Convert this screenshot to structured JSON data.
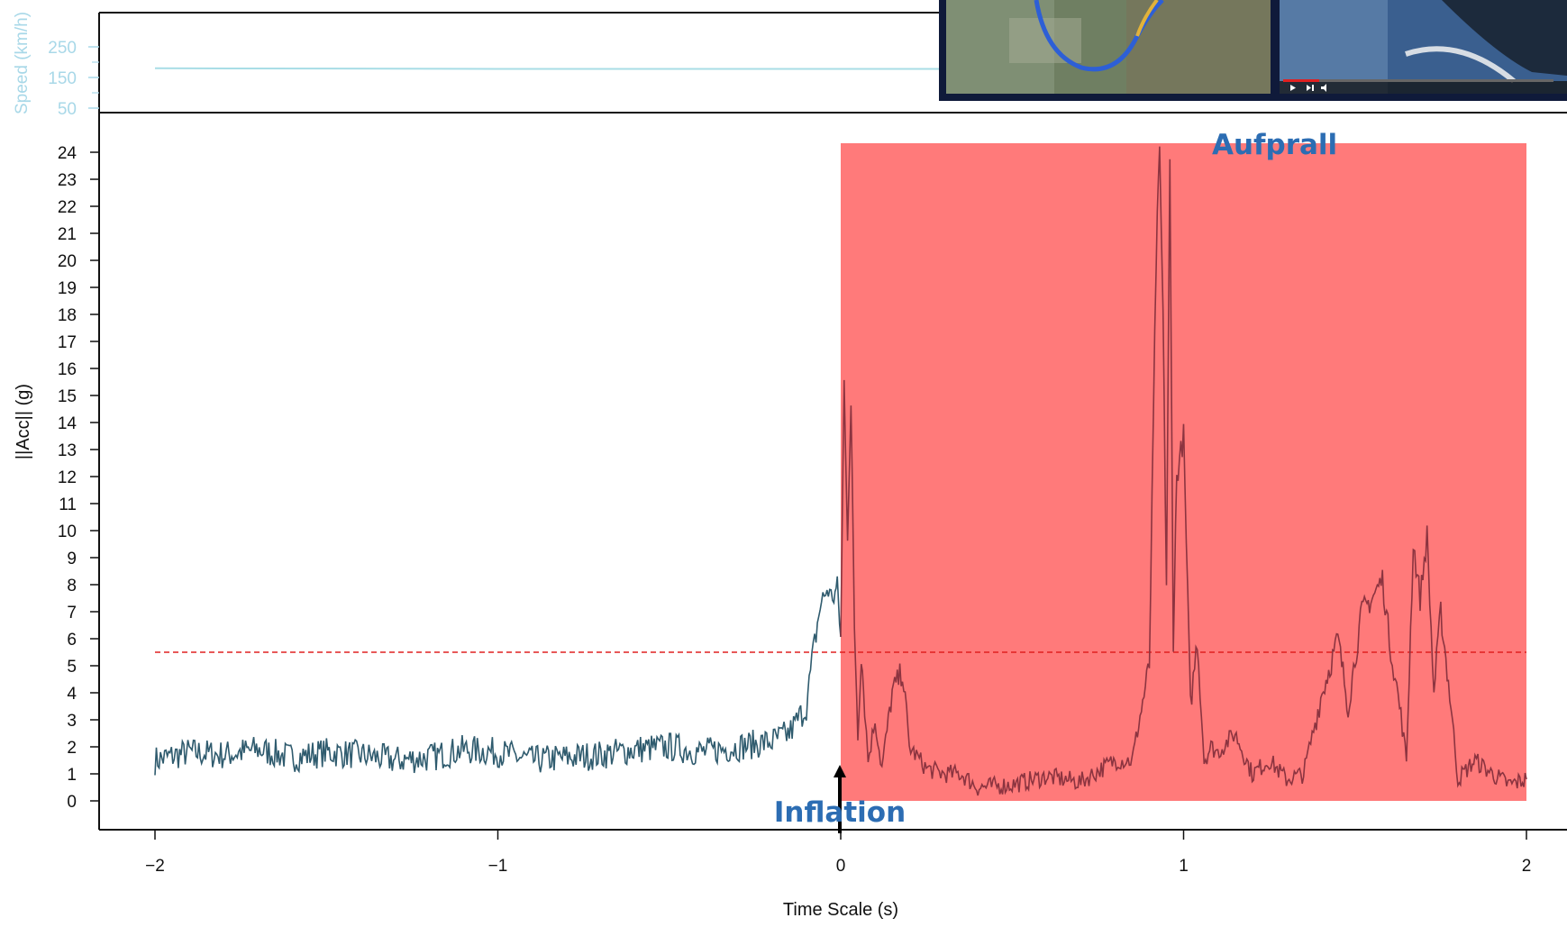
{
  "colors": {
    "acc_line": "#2f5b6e",
    "acc_line_in_region": "#8c3440",
    "speed_line": "#a8dde6",
    "threshold": "#e02020",
    "impact_region": "#ff7a7a",
    "annotation": "#2c6db3",
    "frame": "#111111",
    "speed_text": "#a8d8e8"
  },
  "chart_data": [
    {
      "type": "line",
      "panel": "acceleration",
      "xlabel": "Time Scale (s)",
      "ylabel": "||Acc|| (g)",
      "xlim": [
        -2,
        2
      ],
      "ylim": [
        0,
        24
      ],
      "x_ticks": [
        "−2",
        "−1",
        "0",
        "1",
        "2"
      ],
      "y_ticks": [
        "0",
        "1",
        "2",
        "3",
        "4",
        "5",
        "6",
        "7",
        "8",
        "9",
        "10",
        "11",
        "12",
        "13",
        "14",
        "15",
        "16",
        "17",
        "18",
        "19",
        "20",
        "21",
        "22",
        "23",
        "24"
      ],
      "threshold": 5.5,
      "impact_region": {
        "x_start": 0,
        "x_end": 2,
        "y_start": 0,
        "y_end": 25
      },
      "annotations": [
        {
          "label": "Aufprall",
          "x": 1.2,
          "y": 24.2
        },
        {
          "label": "Inflation",
          "x": 0,
          "arrow_from": -1.2,
          "arrow_to": 1.0
        }
      ],
      "series": [
        {
          "x": [
            -2.0,
            -1.9,
            -1.8,
            -1.7,
            -1.6,
            -1.5,
            -1.4,
            -1.3,
            -1.2,
            -1.1,
            -1.0,
            -0.9,
            -0.8,
            -0.7,
            -0.6,
            -0.5,
            -0.4,
            -0.3,
            -0.2,
            -0.15,
            -0.1,
            -0.08,
            -0.06,
            -0.04,
            -0.02,
            -0.01,
            0.0,
            0.01,
            0.02,
            0.03,
            0.04,
            0.05,
            0.06,
            0.07,
            0.08,
            0.1,
            0.12,
            0.15,
            0.18,
            0.2,
            0.25,
            0.3,
            0.35,
            0.4,
            0.5,
            0.6,
            0.7,
            0.8,
            0.85,
            0.9,
            0.92,
            0.93,
            0.94,
            0.95,
            0.96,
            0.97,
            0.98,
            1.0,
            1.02,
            1.04,
            1.06,
            1.08,
            1.1,
            1.15,
            1.2,
            1.25,
            1.3,
            1.35,
            1.4,
            1.45,
            1.48,
            1.52,
            1.55,
            1.58,
            1.6,
            1.63,
            1.65,
            1.67,
            1.69,
            1.71,
            1.73,
            1.75,
            1.78,
            1.8,
            1.85,
            1.9,
            1.95,
            2.0
          ],
          "y": [
            1.5,
            1.8,
            1.7,
            1.9,
            1.6,
            1.8,
            1.7,
            1.5,
            1.6,
            1.9,
            1.8,
            1.5,
            1.6,
            1.7,
            1.9,
            2.0,
            1.8,
            2.0,
            2.2,
            2.5,
            3.5,
            5.5,
            7.2,
            7.8,
            7.5,
            8.0,
            6.0,
            15.5,
            10.0,
            14.5,
            6.5,
            2.5,
            5.5,
            3.5,
            1.5,
            3.0,
            1.2,
            4.0,
            4.8,
            2.0,
            1.2,
            1.0,
            1.0,
            0.5,
            0.6,
            0.9,
            0.7,
            1.5,
            1.5,
            5.0,
            20.0,
            24.0,
            18.0,
            8.0,
            23.5,
            6.0,
            12.0,
            13.5,
            3.5,
            6.0,
            1.5,
            2.0,
            1.8,
            2.5,
            1.0,
            1.5,
            0.8,
            1.0,
            3.8,
            6.0,
            3.5,
            7.0,
            7.5,
            8.2,
            6.0,
            3.5,
            1.5,
            9.5,
            7.5,
            9.8,
            4.0,
            7.0,
            3.5,
            0.8,
            1.5,
            1.0,
            0.6,
            0.8
          ]
        }
      ]
    },
    {
      "type": "line",
      "panel": "speed",
      "ylabel": "Speed (km/h)",
      "y_ticks": [
        "250",
        "150",
        "50"
      ],
      "ylim": [
        50,
        250
      ],
      "series": [
        {
          "x": [
            -2.0,
            -1.0,
            0.0,
            0.5
          ],
          "y": [
            180,
            178,
            178,
            178
          ]
        }
      ]
    }
  ]
}
